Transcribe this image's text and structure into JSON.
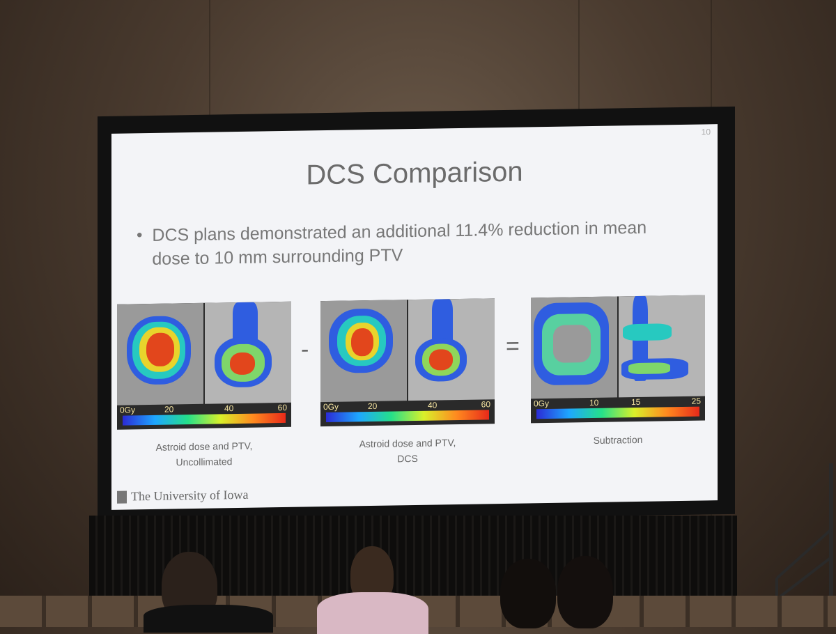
{
  "slide": {
    "number": "10",
    "title": "DCS Comparison",
    "bullet": "DCS plans demonstrated an additional 11.4% reduction in mean dose to 10 mm surrounding PTV",
    "operators": {
      "minus": "-",
      "equals": "="
    },
    "panels": [
      {
        "caption_line1": "Astroid dose and PTV,",
        "caption_line2": "Uncollimated",
        "ticks": [
          "0Gy",
          "20",
          "40",
          "60"
        ]
      },
      {
        "caption_line1": "Astroid dose and PTV,",
        "caption_line2": "DCS",
        "ticks": [
          "0Gy",
          "20",
          "40",
          "60"
        ]
      },
      {
        "caption_line1": "Subtraction",
        "caption_line2": "",
        "ticks": [
          "0Gy",
          "10",
          "15",
          "25"
        ]
      }
    ],
    "logo_text": "The University of Iowa"
  }
}
